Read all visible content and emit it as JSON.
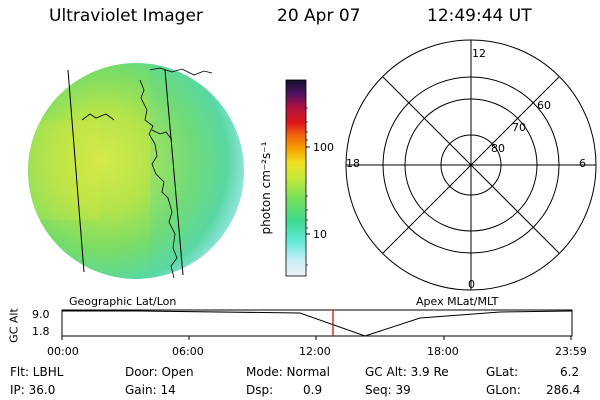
{
  "header": {
    "title": "Ultraviolet Imager",
    "date": "20 Apr 07",
    "time": "12:49:44 UT"
  },
  "colorbar": {
    "unit_label": "photon cm⁻²s⁻¹",
    "tick_100": "100",
    "tick_10": "10",
    "colors": [
      "#e8e8f0",
      "#d0f0f8",
      "#60e8d8",
      "#40d8a0",
      "#70e060",
      "#c0e840",
      "#f0e020",
      "#f8a000",
      "#f06010",
      "#e01818",
      "#b01040",
      "#501060",
      "#101030"
    ]
  },
  "left_panel": {
    "caption": "Geographic Lat/Lon"
  },
  "right_panel": {
    "caption": "Apex MLat/MLT",
    "mlt_labels": {
      "top": "12",
      "left": "18",
      "right": "6",
      "bottom": "0"
    },
    "lat_labels": [
      "60",
      "70",
      "80"
    ]
  },
  "timeline": {
    "axis_label": "GC Alt",
    "y_max": "9.0",
    "y_min": "1.8",
    "ticks": [
      "00:00",
      "06:00",
      "12:00",
      "18:00",
      "23:59"
    ],
    "marker_color": "#cc0000"
  },
  "footer": {
    "flt": "Flt: LBHL",
    "ip": "IP: 36.0",
    "door": "Door: Open",
    "gain": "Gain: 14",
    "mode": "Mode: Normal",
    "dsp_label": "Dsp:",
    "dsp_value": "0.9",
    "gcalt": "GC Alt: 3.9 Re",
    "seq": "Seq: 39",
    "glat_label": "GLat:",
    "glat_value": "6.2",
    "glon_label": "GLon:",
    "glon_value": "286.4"
  }
}
